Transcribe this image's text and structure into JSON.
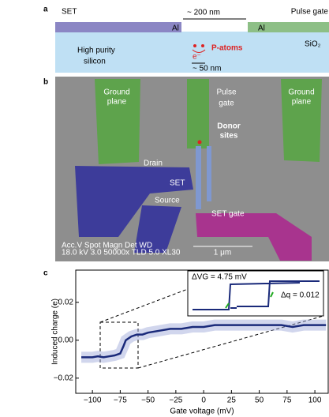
{
  "panel_a": {
    "label": "a",
    "set": "SET",
    "scale_top": "~ 200 nm",
    "pulse_gate": "Pulse gate",
    "al_left": "Al",
    "al_right": "Al",
    "silicon": [
      "High purity",
      "silicon"
    ],
    "p_atoms": "P-atoms",
    "electron": "e⁻",
    "oxide": "SiO₂",
    "scale_bottom": "~ 50 nm"
  },
  "panel_b": {
    "label": "b",
    "ground_left": [
      "Ground",
      "plane"
    ],
    "pulse_gate": [
      "Pulse",
      "gate"
    ],
    "ground_right": [
      "Ground",
      "plane"
    ],
    "donor": [
      "Donor",
      "sites"
    ],
    "drain": "Drain",
    "set": "SET",
    "source": "Source",
    "set_gate": "SET gate",
    "info_head": "Acc.V  Spot  Magn    Det  WD",
    "info_vals": "18.0 kV 3.0  50000x  TLD  5.0  XL30",
    "scale": "1 μm"
  },
  "panel_c": {
    "label": "c",
    "inset_dv": "ΔVG = 4.75 mV",
    "inset_dq": "Δq = 0.012"
  },
  "chart_data": {
    "type": "line",
    "x_label": "Gate voltage (mV)",
    "y_label": "Induced charge (e)",
    "x": [
      -110,
      -105,
      -100,
      -95,
      -90,
      -85,
      -80,
      -75,
      -72,
      -70,
      -65,
      -60,
      -55,
      -50,
      -40,
      -30,
      -20,
      -10,
      0,
      10,
      20,
      30,
      40,
      50,
      60,
      70,
      80,
      90,
      100,
      110
    ],
    "series": [
      {
        "color": "#1a2a7a",
        "values": [
          -0.009,
          -0.009,
          -0.009,
          -0.0085,
          -0.009,
          -0.0085,
          -0.008,
          -0.007,
          -0.003,
          0.0,
          0.002,
          0.003,
          0.003,
          0.004,
          0.005,
          0.006,
          0.006,
          0.007,
          0.007,
          0.008,
          0.008,
          0.008,
          0.008,
          0.008,
          0.008,
          0.008,
          0.007,
          0.008,
          0.008,
          0.008
        ]
      }
    ],
    "xlim": [
      -115,
      112
    ],
    "ylim": [
      -0.028,
      0.037
    ],
    "xticks": [
      {
        "value": -100,
        "label": "−100"
      },
      {
        "value": -75,
        "label": "−75"
      },
      {
        "value": -50,
        "label": "−50"
      },
      {
        "value": -25,
        "label": "−25"
      },
      0,
      25,
      50,
      75,
      100
    ],
    "yticks": [
      {
        "value": -0.02,
        "label": "−0.02"
      },
      {
        "value": 0,
        "label": "0.00"
      },
      0.02
    ]
  }
}
